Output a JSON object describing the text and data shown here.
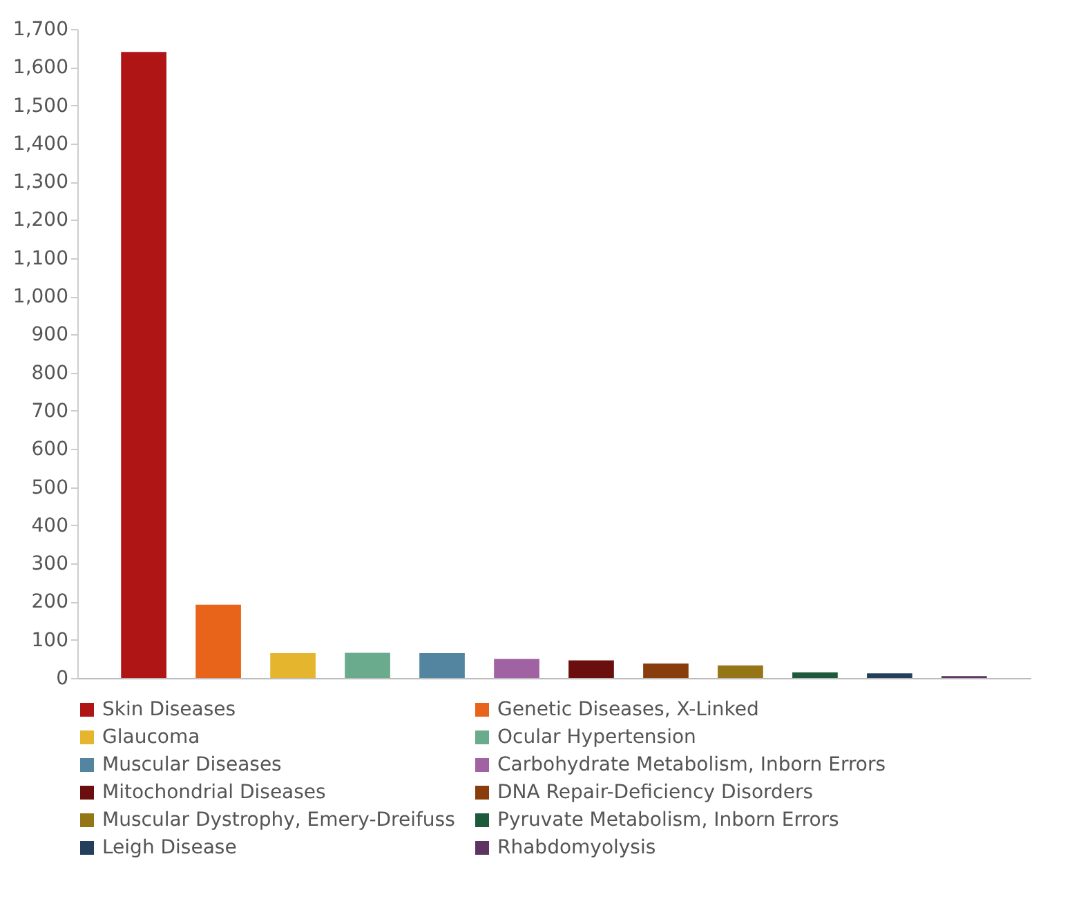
{
  "chart_data": {
    "type": "bar",
    "categories": [
      null,
      null,
      null,
      null,
      null,
      null,
      null,
      null,
      null,
      null,
      null,
      null
    ],
    "series": [
      {
        "name": "Skin Diseases",
        "color": "#b01515",
        "values": [
          1640,
          null,
          null,
          null,
          null,
          null,
          null,
          null,
          null,
          null,
          null,
          null
        ]
      },
      {
        "name": "Genetic Diseases, X-Linked",
        "color": "#e8641a",
        "values": [
          null,
          192,
          null,
          null,
          null,
          null,
          null,
          null,
          null,
          null,
          null,
          null
        ]
      },
      {
        "name": "Glaucoma",
        "color": "#e6b52e",
        "values": [
          null,
          null,
          65,
          null,
          null,
          null,
          null,
          null,
          null,
          null,
          null,
          null
        ]
      },
      {
        "name": "Ocular Hypertension",
        "color": "#6aab8e",
        "values": [
          null,
          null,
          null,
          66,
          null,
          null,
          null,
          null,
          null,
          null,
          null,
          null
        ]
      },
      {
        "name": "Muscular Diseases",
        "color": "#5385a0",
        "values": [
          null,
          null,
          null,
          null,
          65,
          null,
          null,
          null,
          null,
          null,
          null,
          null
        ]
      },
      {
        "name": "Carbohydrate Metabolism, Inborn Errors",
        "color": "#a062a2",
        "values": [
          null,
          null,
          null,
          null,
          null,
          50,
          null,
          null,
          null,
          null,
          null,
          null
        ]
      },
      {
        "name": "Mitochondrial Diseases",
        "color": "#6b0e0e",
        "values": [
          null,
          null,
          null,
          null,
          null,
          null,
          46,
          null,
          null,
          null,
          null,
          null
        ]
      },
      {
        "name": "DNA Repair-Deficiency Disorders",
        "color": "#8a3d0c",
        "values": [
          null,
          null,
          null,
          null,
          null,
          null,
          null,
          38,
          null,
          null,
          null,
          null
        ]
      },
      {
        "name": "Muscular Dystrophy, Emery-Dreifuss",
        "color": "#947617",
        "values": [
          null,
          null,
          null,
          null,
          null,
          null,
          null,
          null,
          33,
          null,
          null,
          null
        ]
      },
      {
        "name": "Pyruvate Metabolism, Inborn Errors",
        "color": "#1d5a3c",
        "values": [
          null,
          null,
          null,
          null,
          null,
          null,
          null,
          null,
          null,
          15,
          null,
          null
        ]
      },
      {
        "name": "Leigh Disease",
        "color": "#243f5c",
        "values": [
          null,
          null,
          null,
          null,
          null,
          null,
          null,
          null,
          null,
          null,
          12,
          null
        ]
      },
      {
        "name": "Rhabdomyolysis",
        "color": "#5e3462",
        "values": [
          null,
          null,
          null,
          null,
          null,
          null,
          null,
          null,
          null,
          null,
          null,
          5
        ]
      }
    ],
    "ylim": [
      0,
      1700
    ],
    "yticks": [
      0,
      100,
      200,
      300,
      400,
      500,
      600,
      700,
      800,
      900,
      {
        "value": 1000,
        "label": "1,000"
      },
      {
        "value": 1100,
        "label": "1,100"
      },
      {
        "value": 1200,
        "label": "1,200"
      },
      {
        "value": 1300,
        "label": "1,300"
      },
      {
        "value": 1400,
        "label": "1,400"
      },
      {
        "value": 1500,
        "label": "1,500"
      },
      {
        "value": 1600,
        "label": "1,600"
      },
      {
        "value": 1700,
        "label": "1,700"
      }
    ],
    "grid": false,
    "legend": "bottom",
    "tick_labels": "y"
  }
}
